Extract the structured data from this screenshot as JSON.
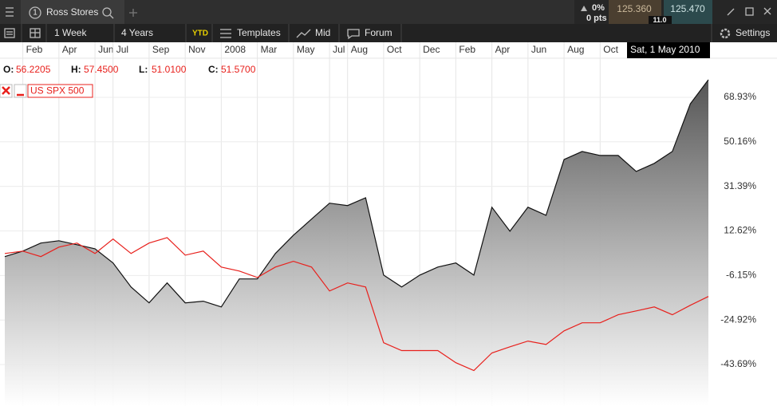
{
  "toolbar": {
    "tab_number": "1",
    "change_pct": "0%",
    "change_pts": "0 pts",
    "bid": "125.360",
    "spread": "11.0",
    "ask": "125.470"
  },
  "menu": {
    "items": [
      "1 Week",
      "4 Years",
      "YTD",
      "Templates",
      "Mid",
      "Forum"
    ],
    "settings": "Settings"
  },
  "ohlc": [
    {
      "label": "O:",
      "value": "56.2205"
    },
    {
      "label": "H:",
      "value": "57.4500"
    },
    {
      "label": "L:",
      "value": "51.0100"
    },
    {
      "label": "C:",
      "value": "51.5700"
    }
  ],
  "chart_data": {
    "type": "line",
    "crosshair_label": "Sat, 1 May 2010",
    "categories": [
      null,
      "Feb",
      null,
      "Apr",
      null,
      "Jun",
      "Jul",
      null,
      "Sep",
      null,
      "Nov",
      null,
      "2008",
      null,
      "Mar",
      null,
      "May",
      null,
      "Jul",
      "Aug",
      null,
      "Oct",
      null,
      "Dec",
      null,
      "Feb",
      null,
      "Apr",
      null,
      "Jun",
      null,
      "Aug",
      null,
      "Oct",
      null,
      null,
      null,
      null,
      null,
      null
    ],
    "series": [
      {
        "name": "Ross Stores",
        "color": "#111111",
        "area": true,
        "values": [
          1.8,
          4.1,
          7.5,
          8.5,
          6.8,
          5.1,
          -0.9,
          -11,
          -17.7,
          -9.3,
          -17.7,
          -17,
          -19.4,
          -7.6,
          -7.6,
          3.1,
          10.8,
          17.6,
          24.3,
          23.3,
          26.6,
          -6,
          -11,
          -6,
          -2.6,
          -0.9,
          -6,
          22.6,
          12.5,
          22.6,
          19.2,
          42.7,
          46.1,
          44.4,
          44.4,
          37.7,
          41.1,
          46.1,
          66.2,
          76.3
        ]
      },
      {
        "name": "US SPX 500",
        "color": "#e8201c",
        "area": false,
        "values": [
          3.1,
          4.1,
          1.8,
          5.8,
          7.5,
          3.1,
          9.2,
          3.1,
          7.5,
          9.8,
          2.4,
          4.1,
          -2.6,
          -4.3,
          -7,
          -2.6,
          -0.2,
          -2.6,
          -12.7,
          -9.3,
          -11,
          -34.5,
          -37.8,
          -37.8,
          -37.8,
          -42.9,
          -46.2,
          -38.8,
          -36.2,
          -33.8,
          -35.2,
          -29.5,
          -26.1,
          -26.1,
          -22.7,
          -21.1,
          -19.4,
          -22.7,
          -18.7,
          -15
        ]
      }
    ],
    "ylim": [
      -61.15,
      85.38
    ],
    "yticks": [
      {
        "value": 68.93,
        "label": "68.93%"
      },
      {
        "value": 50.16,
        "label": "50.16%"
      },
      {
        "value": 31.39,
        "label": "31.39%"
      },
      {
        "value": 12.62,
        "label": "12.62%"
      },
      {
        "value": -6.15,
        "label": "-6.15%"
      },
      {
        "value": -24.92,
        "label": "-24.92%"
      },
      {
        "value": -43.69,
        "label": "-43.69%"
      }
    ],
    "grid": true
  }
}
